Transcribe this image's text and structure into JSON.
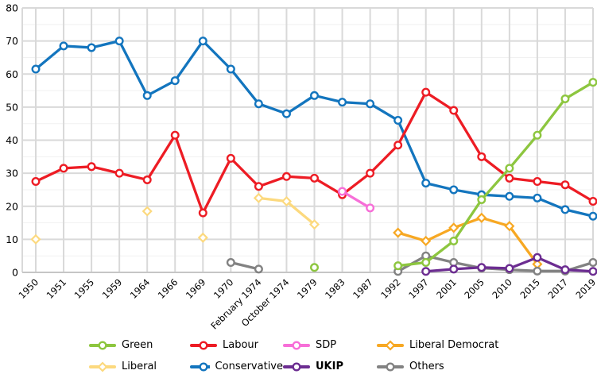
{
  "chart_data": {
    "type": "line",
    "title": "",
    "xlabel": "",
    "ylabel": "",
    "x_categories": [
      "1950",
      "1951",
      "1955",
      "1959",
      "1964",
      "1966",
      "1969",
      "1970",
      "February 1974",
      "October 1974",
      "1979",
      "1983",
      "1987",
      "1992",
      "1997",
      "2001",
      "2005",
      "2010",
      "2015",
      "2017",
      "2019"
    ],
    "y_axis": {
      "min": 0,
      "max": 80,
      "major_step": 10,
      "minor_step": 5,
      "tick_labels": [
        "0",
        "10",
        "20",
        "30",
        "40",
        "50",
        "60",
        "70",
        "80"
      ]
    },
    "grid": {
      "major_color": "#D9D9D9",
      "minor_color": "#F1F1F1",
      "axis_color": "#C6C6C6",
      "vertical_per_category": true
    },
    "legend": {
      "position": "bottom",
      "rows": [
        [
          "Green",
          "Labour",
          "SDP",
          "Liberal Democrat"
        ],
        [
          "Liberal",
          "Conservative",
          "UKIP",
          "Others"
        ]
      ]
    },
    "z_order": [
      "Liberal",
      "Conservative",
      "Labour",
      "SDP",
      "Liberal Democrat",
      "Others",
      "UKIP",
      "Green"
    ],
    "series": [
      {
        "name": "Green",
        "color": "#8DC63F",
        "marker": "circle",
        "bold_label": false,
        "values": [
          null,
          null,
          null,
          null,
          null,
          null,
          null,
          null,
          null,
          null,
          1.5,
          null,
          null,
          2,
          3,
          9.5,
          22,
          31.5,
          41.5,
          52.5,
          57.5
        ]
      },
      {
        "name": "Labour",
        "color": "#ED1C24",
        "marker": "circle",
        "bold_label": false,
        "values": [
          27.5,
          31.5,
          32,
          30,
          28,
          41.5,
          18,
          34.5,
          26,
          29,
          28.5,
          23.5,
          30,
          38.5,
          54.5,
          49,
          35,
          28.5,
          27.5,
          26.5,
          21.5
        ]
      },
      {
        "name": "SDP",
        "color": "#F76FD8",
        "marker": "circle",
        "bold_label": false,
        "values": [
          null,
          null,
          null,
          null,
          null,
          null,
          null,
          null,
          null,
          null,
          null,
          24.5,
          19.5,
          null,
          null,
          null,
          null,
          null,
          null,
          null,
          null
        ]
      },
      {
        "name": "Liberal Democrat",
        "color": "#F7A823",
        "marker": "diamond",
        "bold_label": false,
        "values": [
          null,
          null,
          null,
          null,
          null,
          null,
          null,
          null,
          null,
          null,
          null,
          null,
          null,
          12,
          9.5,
          13.5,
          16.5,
          14,
          2.5,
          null,
          null
        ]
      },
      {
        "name": "Liberal",
        "color": "#FCD97E",
        "marker": "diamond",
        "bold_label": false,
        "values": [
          10,
          null,
          null,
          null,
          18.5,
          null,
          10.5,
          null,
          22.5,
          21.5,
          14.5,
          null,
          null,
          null,
          null,
          null,
          null,
          null,
          null,
          null,
          null
        ]
      },
      {
        "name": "Conservative",
        "color": "#1375BE",
        "marker": "circle",
        "bold_label": false,
        "values": [
          61.5,
          68.5,
          68,
          70,
          53.5,
          58,
          70,
          61.5,
          51,
          48,
          53.5,
          51.5,
          51,
          46,
          27,
          25,
          23.5,
          23,
          22.5,
          19,
          17
        ]
      },
      {
        "name": "UKIP",
        "color": "#6C2D91",
        "marker": "circle",
        "bold_label": true,
        "values": [
          null,
          null,
          null,
          null,
          null,
          null,
          null,
          null,
          null,
          null,
          null,
          null,
          null,
          null,
          0.3,
          1,
          1.5,
          1.2,
          4.5,
          0.8,
          0.3
        ]
      },
      {
        "name": "Others",
        "color": "#828282",
        "marker": "circle",
        "bold_label": false,
        "values": [
          null,
          null,
          null,
          null,
          null,
          null,
          null,
          3,
          1,
          null,
          null,
          null,
          null,
          0.3,
          5,
          3,
          1.3,
          0.8,
          0.4,
          0.4,
          3
        ]
      }
    ]
  }
}
